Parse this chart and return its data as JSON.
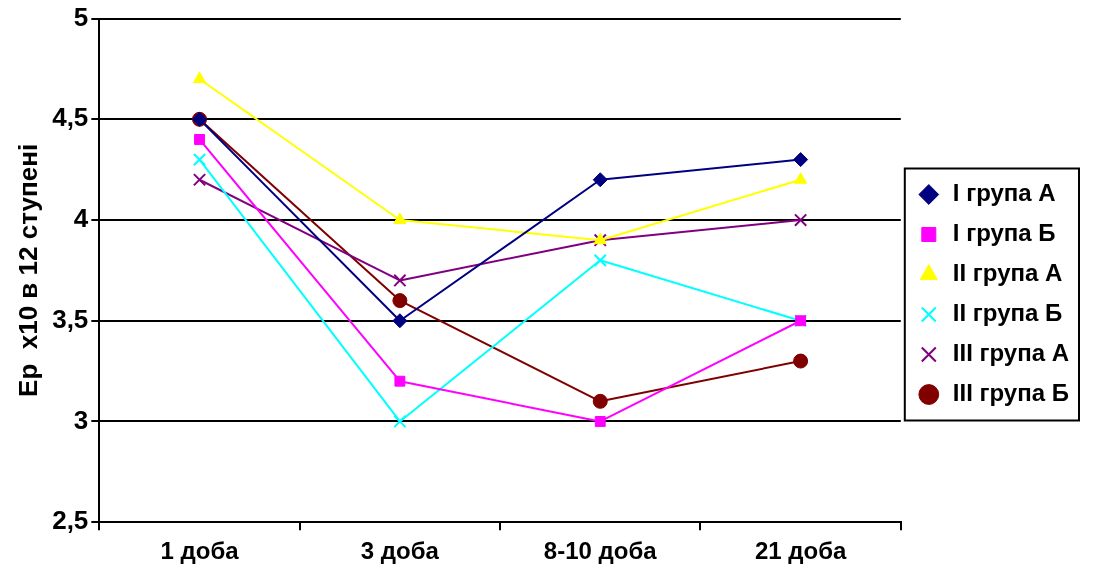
{
  "chart_data": {
    "type": "line",
    "ylabel": "Ер  х10 в 12 ступені",
    "categories": [
      "1 доба",
      "3 доба",
      "8-10 доба",
      "21 доба"
    ],
    "ylim": [
      2.5,
      5
    ],
    "yticks": [
      {
        "value": 2.5,
        "label": "2,5"
      },
      3,
      {
        "value": 3.5,
        "label": "3,5"
      },
      4,
      {
        "value": 4.5,
        "label": "4,5"
      },
      5
    ],
    "grid": "y",
    "legend": "right",
    "line_style": "solid",
    "series": [
      {
        "name": "I група А",
        "color": "#000080",
        "marker": "diamond",
        "values": [
          4.5,
          3.5,
          4.2,
          4.3
        ]
      },
      {
        "name": "I група Б",
        "color": "#ff00ff",
        "marker": "square",
        "values": [
          4.4,
          3.2,
          3.0,
          3.5
        ]
      },
      {
        "name": "II група А",
        "color": "#ffff00",
        "marker": "triangle",
        "values": [
          4.7,
          4.0,
          3.9,
          4.2
        ]
      },
      {
        "name": "II група Б",
        "color": "#00ffff",
        "marker": "cross",
        "values": [
          4.3,
          3.0,
          3.8,
          3.5
        ]
      },
      {
        "name": "III група А",
        "color": "#800080",
        "marker": "cross",
        "values": [
          4.2,
          3.7,
          3.9,
          4.0
        ]
      },
      {
        "name": "III група Б",
        "color": "#800000",
        "marker": "circle",
        "values": [
          4.5,
          3.6,
          3.1,
          3.3
        ]
      }
    ]
  }
}
